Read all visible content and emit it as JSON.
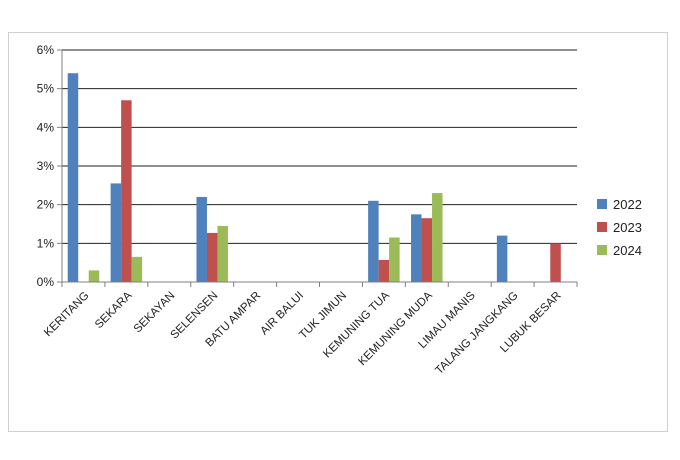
{
  "chart_data": {
    "type": "bar",
    "title": "",
    "xlabel": "",
    "ylabel": "",
    "categories": [
      "KERITANG",
      "SEKARA",
      "SEKAYAN",
      "SELENSEN",
      "BATU AMPAR",
      "AIR BALUI",
      "TUK JIMUN",
      "KEMUNING TUA",
      "KEMUNING MUDA",
      "LIMAU MANIS",
      "TALANG JANGKANG",
      "LUBUK BESAR"
    ],
    "series": [
      {
        "name": "2022",
        "color": "#4f81bd",
        "values": [
          5.4,
          2.55,
          0,
          2.2,
          0,
          0,
          0,
          2.1,
          1.75,
          0,
          1.2,
          0
        ]
      },
      {
        "name": "2023",
        "color": "#c0504d",
        "values": [
          0,
          4.7,
          0,
          1.27,
          0,
          0,
          0,
          0.57,
          1.65,
          0,
          0,
          1.0
        ]
      },
      {
        "name": "2024",
        "color": "#9bbb59",
        "values": [
          0.3,
          0.65,
          0,
          1.45,
          0,
          0,
          0,
          1.15,
          2.3,
          0,
          0,
          0
        ]
      }
    ],
    "ylim": [
      0,
      6
    ],
    "yticks": [
      "0%",
      "1%",
      "2%",
      "3%",
      "4%",
      "5%",
      "6%"
    ],
    "grid": true,
    "legend": "right"
  }
}
